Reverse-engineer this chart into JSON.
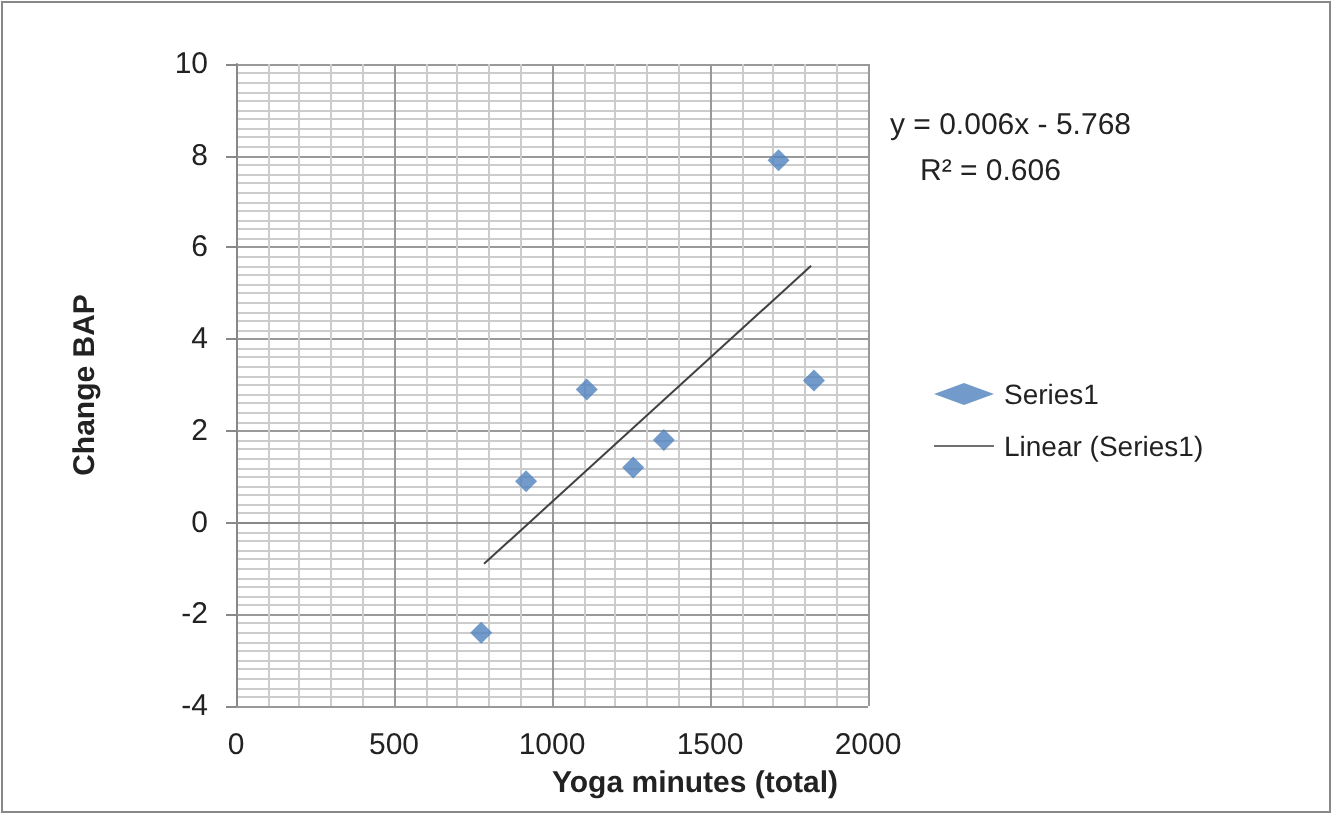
{
  "chart_data": {
    "type": "scatter",
    "xlabel": "Yoga minutes (total)",
    "ylabel": "Change BAP",
    "annotations": [
      "y = 0.006x - 5.768",
      "R² = 0.606"
    ],
    "series": [
      {
        "name": "Series1",
        "marker": "diamond",
        "color": "#4f81bd",
        "x": [
          776,
          918,
          1110,
          1257,
          1354,
          1717,
          1829
        ],
        "values": [
          -2.4,
          0.9,
          2.9,
          1.2,
          1.8,
          7.9,
          3.1
        ]
      },
      {
        "name": "Linear (Series1)",
        "type": "line",
        "marker": "none",
        "color": "#404040",
        "x": [
          785,
          1820
        ],
        "values": [
          -0.9,
          5.6
        ]
      }
    ],
    "xlim": [
      0,
      2000
    ],
    "xticks": [
      0,
      500,
      1000,
      1500,
      2000
    ],
    "ylim": [
      -4,
      10
    ],
    "yticks": [
      -4,
      -2,
      0,
      2,
      4,
      6,
      8,
      10
    ],
    "grid": true,
    "legend": "right"
  }
}
